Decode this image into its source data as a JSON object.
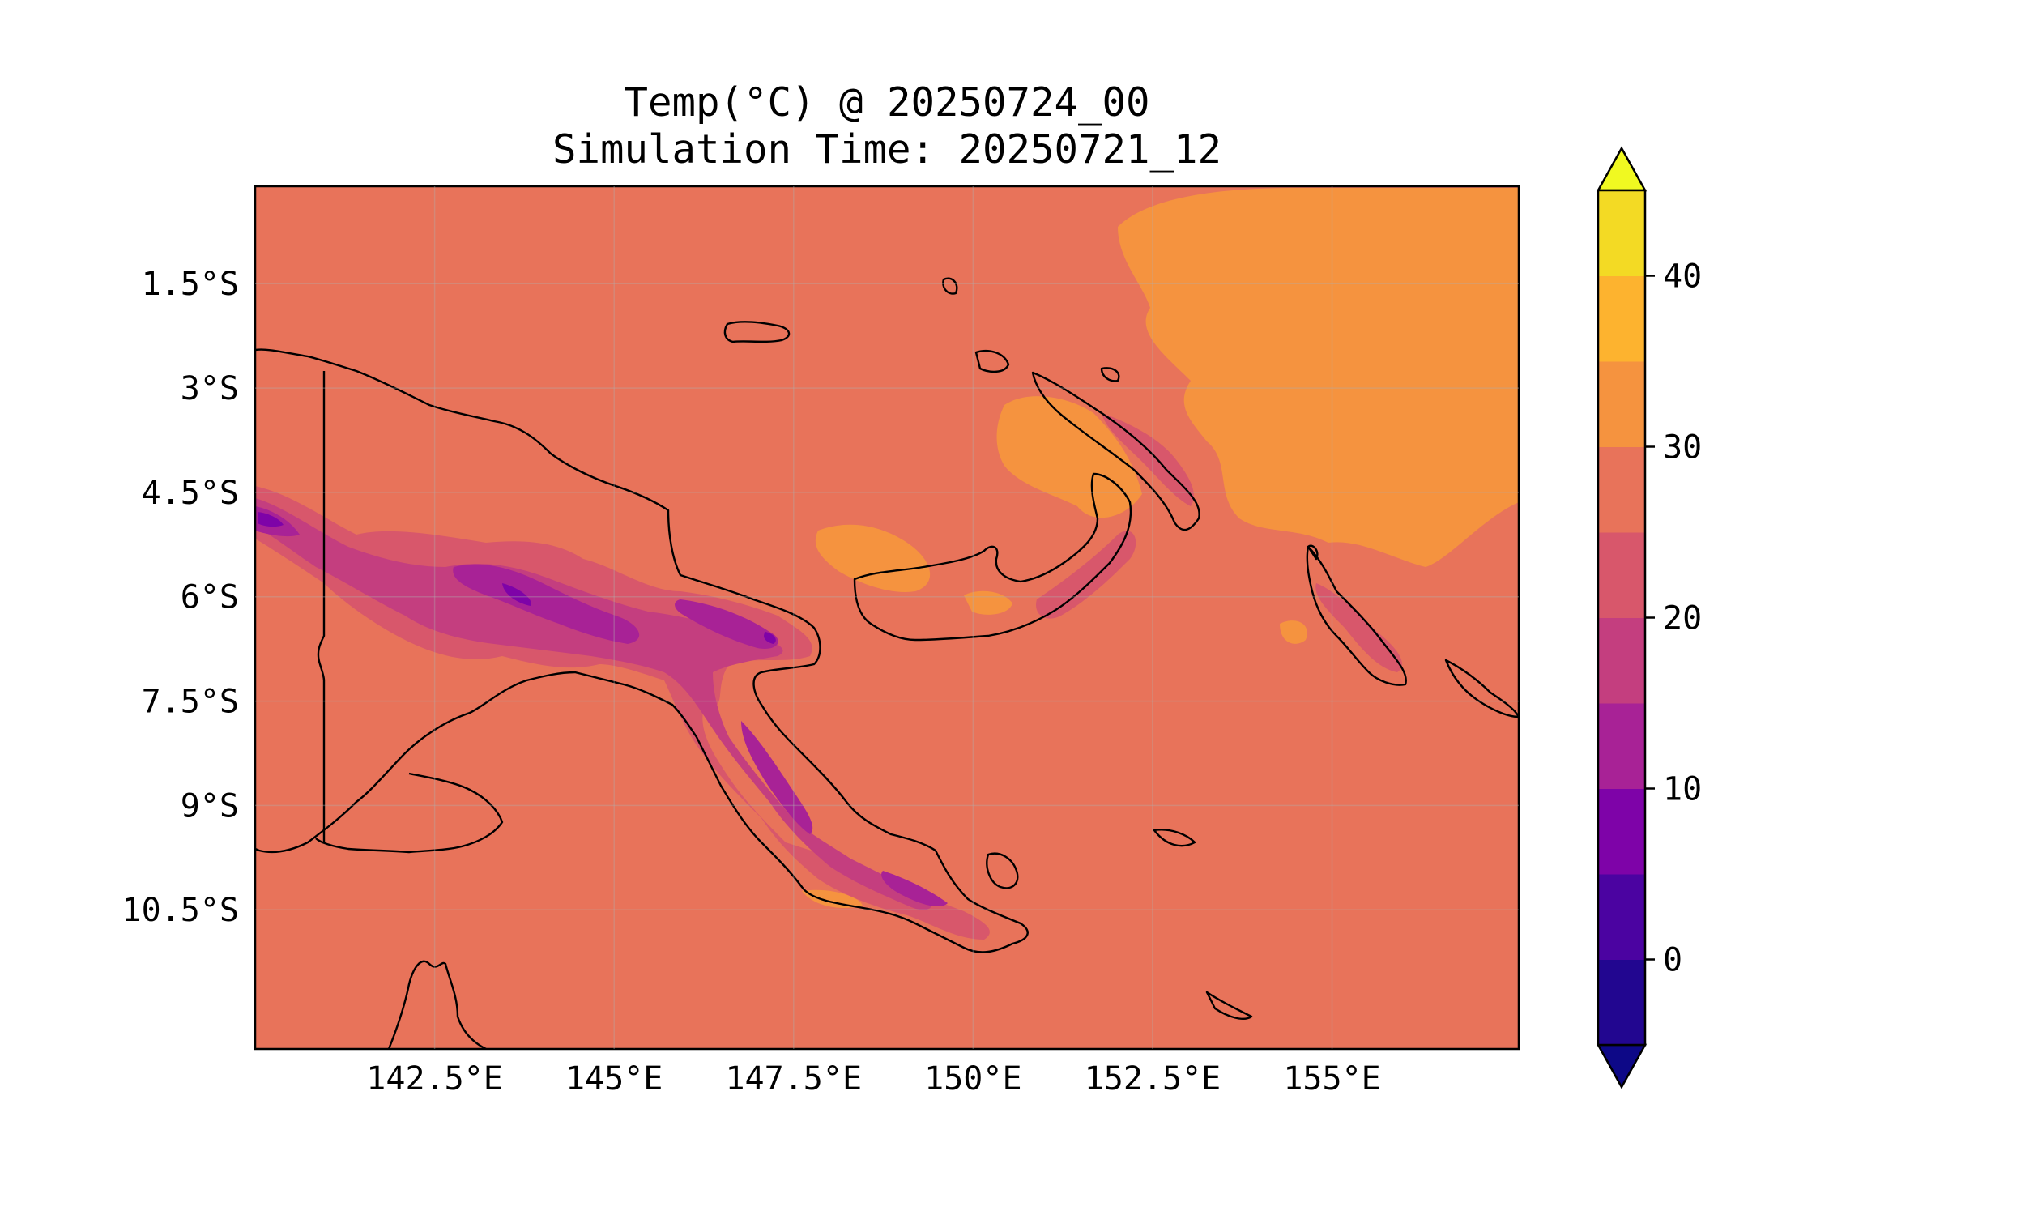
{
  "title": {
    "line1": "Temp(°C) @ 20250724_00",
    "line2": "Simulation Time: 20250721_12"
  },
  "map": {
    "lon_range": [
      140.0,
      157.6
    ],
    "lat_range": [
      -12.5,
      -0.1
    ],
    "x_ticks": [
      {
        "value": 142.5,
        "label": "142.5°E"
      },
      {
        "value": 145,
        "label": "145°E"
      },
      {
        "value": 147.5,
        "label": "147.5°E"
      },
      {
        "value": 150,
        "label": "150°E"
      },
      {
        "value": 152.5,
        "label": "152.5°E"
      },
      {
        "value": 155,
        "label": "155°E"
      }
    ],
    "y_ticks": [
      {
        "value": -1.5,
        "label": "1.5°S"
      },
      {
        "value": -3,
        "label": "3°S"
      },
      {
        "value": -4.5,
        "label": "4.5°S"
      },
      {
        "value": -6,
        "label": "6°S"
      },
      {
        "value": -7.5,
        "label": "7.5°S"
      },
      {
        "value": -9,
        "label": "9°S"
      },
      {
        "value": -10.5,
        "label": "10.5°S"
      }
    ],
    "background_level_color": "#e8735a",
    "region": "Papua New Guinea"
  },
  "colorbar": {
    "colormap": "plasma",
    "extend": "both",
    "min": -5,
    "max": 45,
    "levels": [
      -5,
      0,
      5,
      10,
      15,
      20,
      25,
      30,
      35,
      40,
      45
    ],
    "colors": [
      "#220690",
      "#4b03a1",
      "#7e03a8",
      "#a82296",
      "#c43e7f",
      "#d8576b",
      "#e8735a",
      "#f5933f",
      "#fdb32f",
      "#f3da24"
    ],
    "under_color": "#0d0887",
    "over_color": "#f0f921",
    "tick_labels": [
      {
        "value": 0,
        "label": "0"
      },
      {
        "value": 10,
        "label": "10"
      },
      {
        "value": 20,
        "label": "20"
      },
      {
        "value": 30,
        "label": "30"
      },
      {
        "value": 40,
        "label": "40"
      }
    ]
  }
}
